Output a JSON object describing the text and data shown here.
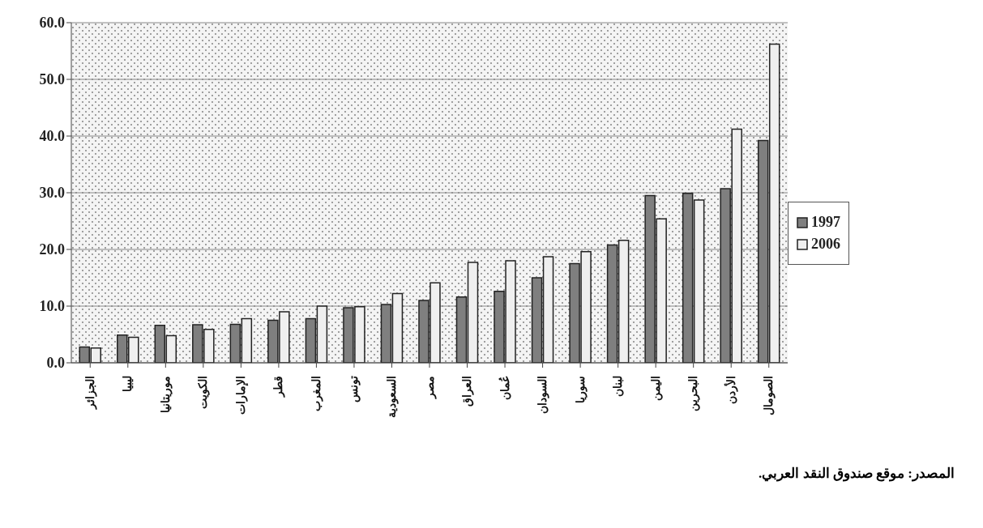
{
  "chart_data": {
    "type": "bar",
    "categories": [
      "الجزائر",
      "ليبيا",
      "موريتانيا",
      "الكويت",
      "الإمارات",
      "قطر",
      "المغرب",
      "تونس",
      "السعودية",
      "مصر",
      "العراق",
      "عُمان",
      "السودان",
      "سوريا",
      "لبنان",
      "اليمن",
      "البحرين",
      "الأردن",
      "الصومال"
    ],
    "series": [
      {
        "name": "1997",
        "color": "#7f7f7f",
        "values": [
          2.8,
          4.9,
          6.6,
          6.7,
          6.8,
          7.5,
          7.8,
          9.7,
          10.3,
          11.0,
          11.6,
          12.6,
          15.0,
          17.5,
          20.8,
          29.5,
          29.9,
          30.7,
          39.2
        ]
      },
      {
        "name": "2006",
        "color": "#efefef",
        "values": [
          2.6,
          4.5,
          4.8,
          5.9,
          7.8,
          9.0,
          10.0,
          9.9,
          12.2,
          14.1,
          17.7,
          18.0,
          18.7,
          19.6,
          21.6,
          25.4,
          28.7,
          41.2,
          56.2
        ]
      }
    ],
    "ylim": [
      0,
      60
    ],
    "yticks": [
      {
        "value": 0,
        "label": "0.0"
      },
      {
        "value": 10,
        "label": "10.0"
      },
      {
        "value": 20,
        "label": "20.0"
      },
      {
        "value": 30,
        "label": "30.0"
      },
      {
        "value": 40,
        "label": "40.0"
      },
      {
        "value": 50,
        "label": "50.0"
      },
      {
        "value": 60,
        "label": "60.0"
      }
    ],
    "grid": "y",
    "legend": "right",
    "annotations": [
      "المصدر: موقع صندوق النقد العربي."
    ]
  }
}
